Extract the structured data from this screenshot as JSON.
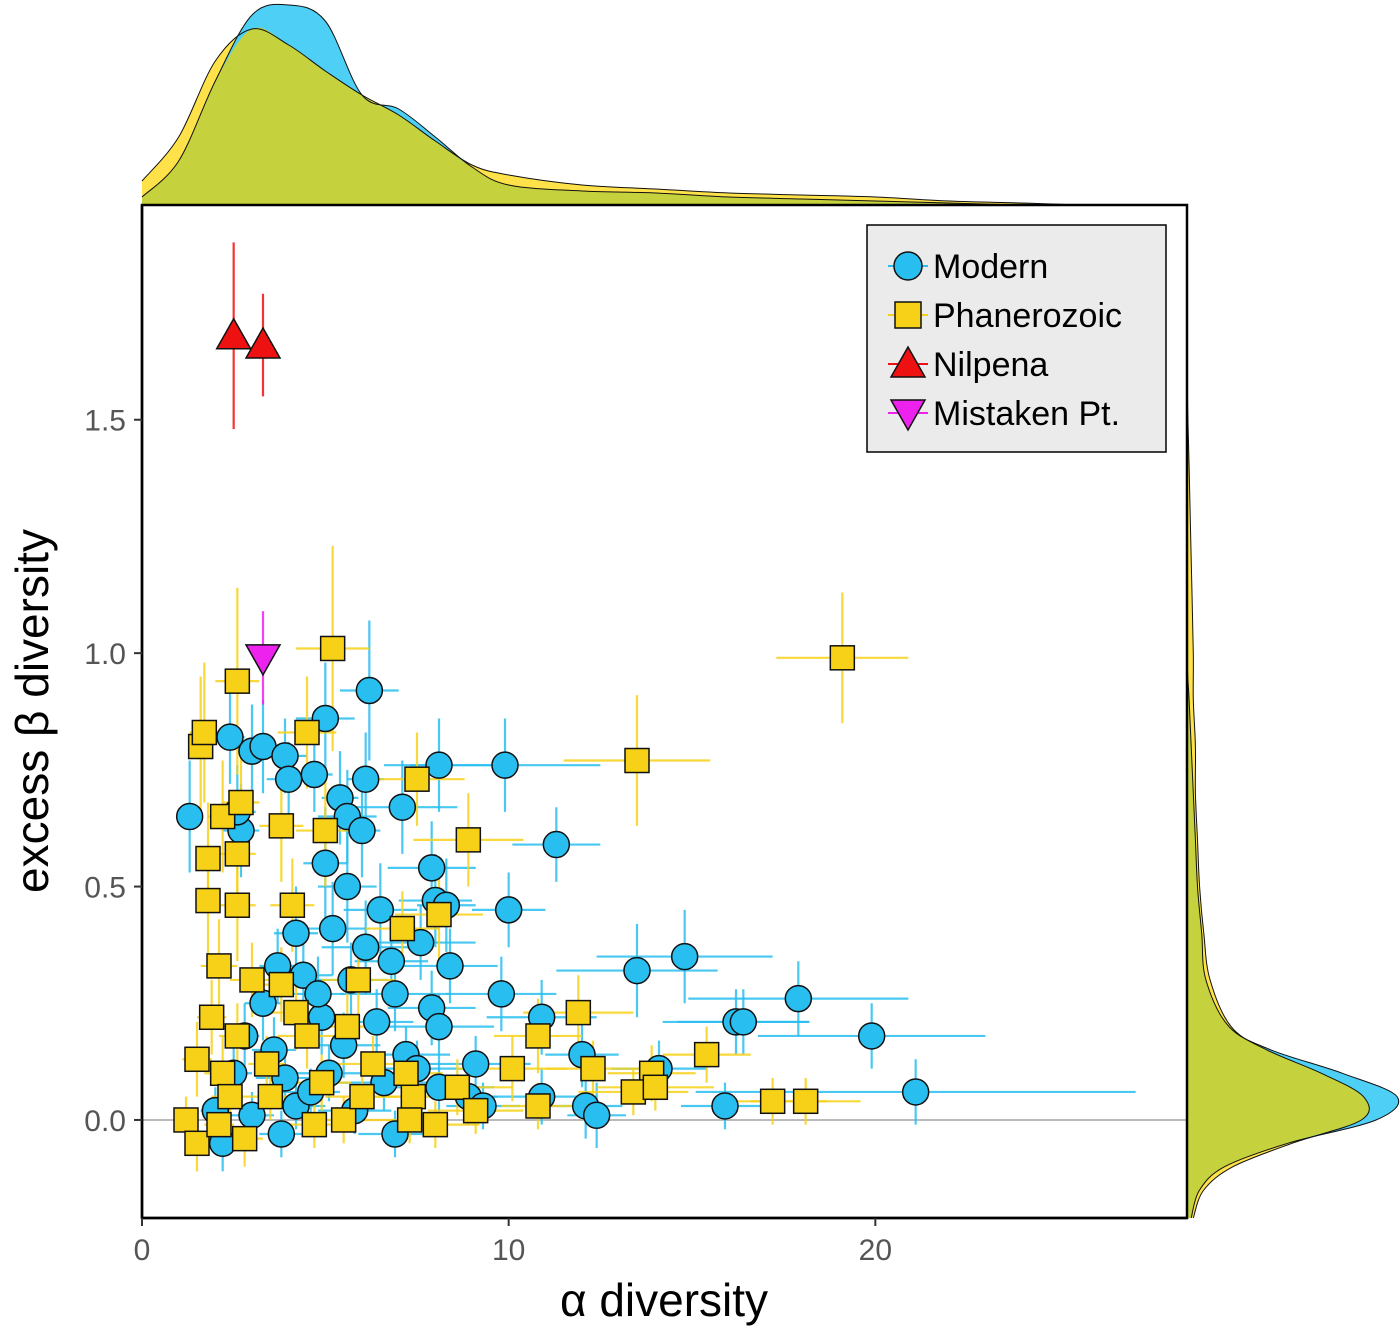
{
  "chart_data": {
    "type": "scatter",
    "xlabel": "α diversity",
    "ylabel": "excess β diversity",
    "xlim": [
      0,
      28.5
    ],
    "ylim": [
      -0.21,
      1.96
    ],
    "x_ticks": [
      {
        "value": 0,
        "label": "0"
      },
      {
        "value": 10,
        "label": "10"
      },
      {
        "value": 20,
        "label": "20"
      }
    ],
    "y_ticks": [
      {
        "value": 0.0,
        "label": "0.0"
      },
      {
        "value": 0.5,
        "label": "0.5"
      },
      {
        "value": 1.0,
        "label": "1.0"
      },
      {
        "value": 1.5,
        "label": "1.5"
      }
    ],
    "reference_line_y": 0,
    "legend_position": "top-right",
    "colors": {
      "modern": "#29BEF0",
      "phanerozoic": "#F7D117",
      "nilpena": "#EE1111",
      "mistaken": "#EE22EE",
      "density_modern": "#4DCFF6",
      "density_phanerozoic": "#FFE24A",
      "density_overlap": "#C5D23D",
      "refline": "#BBBBBB"
    },
    "marginal_x_density": {
      "x": [
        0,
        1,
        2,
        3,
        4,
        5,
        6,
        7,
        8,
        9,
        10,
        12,
        14,
        16,
        18,
        20,
        22,
        24,
        26,
        28.5
      ],
      "modern": [
        0.04,
        0.22,
        0.62,
        0.95,
        1.0,
        0.92,
        0.55,
        0.48,
        0.34,
        0.19,
        0.1,
        0.07,
        0.06,
        0.04,
        0.03,
        0.02,
        0.01,
        0.0,
        0.0,
        0.0
      ],
      "phanerozoic": [
        0.12,
        0.34,
        0.72,
        0.88,
        0.8,
        0.67,
        0.55,
        0.45,
        0.32,
        0.2,
        0.15,
        0.1,
        0.08,
        0.06,
        0.05,
        0.04,
        0.02,
        0.01,
        0.0,
        0.0
      ]
    },
    "marginal_y_density": {
      "y": [
        -0.21,
        -0.15,
        -0.1,
        -0.05,
        0.0,
        0.05,
        0.1,
        0.15,
        0.2,
        0.3,
        0.4,
        0.5,
        0.6,
        0.7,
        0.8,
        0.9,
        1.0,
        1.2,
        1.4,
        1.6,
        1.8,
        1.96
      ],
      "modern": [
        0.02,
        0.06,
        0.18,
        0.48,
        0.9,
        1.0,
        0.74,
        0.4,
        0.2,
        0.09,
        0.07,
        0.05,
        0.04,
        0.03,
        0.02,
        0.01,
        0.0,
        0.0,
        0.0,
        0.0,
        0.0,
        0.0
      ],
      "phanerozoic": [
        0.03,
        0.08,
        0.22,
        0.5,
        0.83,
        0.84,
        0.64,
        0.38,
        0.21,
        0.11,
        0.08,
        0.06,
        0.05,
        0.04,
        0.04,
        0.03,
        0.03,
        0.02,
        0.01,
        0.0,
        0.0,
        0.0
      ]
    },
    "series": [
      {
        "name": "Modern",
        "marker": "circle",
        "points": [
          [
            1.3,
            0.65,
            0.1,
            0.12
          ],
          [
            2.4,
            0.82,
            0.4,
            0.1
          ],
          [
            2.7,
            0.62,
            0.5,
            0.1
          ],
          [
            3.0,
            0.79,
            0.4,
            0.1
          ],
          [
            3.3,
            0.8,
            0.5,
            0.1
          ],
          [
            3.9,
            0.78,
            0.6,
            0.08
          ],
          [
            4.0,
            0.73,
            0.6,
            0.08
          ],
          [
            4.7,
            0.74,
            0.5,
            0.08
          ],
          [
            5.0,
            0.86,
            0.8,
            0.12
          ],
          [
            5.4,
            0.69,
            0.5,
            0.1
          ],
          [
            5.6,
            0.65,
            0.8,
            0.1
          ],
          [
            6.1,
            0.73,
            0.5,
            0.1
          ],
          [
            6.0,
            0.62,
            0.5,
            0.1
          ],
          [
            6.2,
            0.92,
            0.8,
            0.15
          ],
          [
            7.1,
            0.67,
            1.5,
            0.1
          ],
          [
            8.1,
            0.76,
            1.5,
            0.1
          ],
          [
            9.9,
            0.76,
            2.6,
            0.1
          ],
          [
            11.3,
            0.59,
            1.2,
            0.08
          ],
          [
            10.0,
            0.45,
            1.0,
            0.08
          ],
          [
            13.5,
            0.32,
            2.2,
            0.1
          ],
          [
            14.8,
            0.35,
            2.4,
            0.1
          ],
          [
            9.8,
            0.27,
            1.5,
            0.08
          ],
          [
            10.9,
            0.22,
            1.5,
            0.08
          ],
          [
            16.2,
            0.21,
            2.0,
            0.07
          ],
          [
            16.4,
            0.21,
            1.8,
            0.07
          ],
          [
            17.9,
            0.26,
            3.0,
            0.08
          ],
          [
            19.9,
            0.18,
            3.1,
            0.07
          ],
          [
            21.1,
            0.06,
            6.0,
            0.07
          ],
          [
            15.9,
            0.03,
            1.2,
            0.05
          ],
          [
            12.1,
            0.03,
            1.0,
            0.07
          ],
          [
            12.4,
            0.01,
            0.8,
            0.07
          ],
          [
            12.0,
            0.14,
            1.0,
            0.07
          ],
          [
            10.9,
            0.05,
            1.5,
            0.06
          ],
          [
            14.1,
            0.11,
            1.3,
            0.06
          ],
          [
            8.9,
            0.05,
            0.8,
            0.06
          ],
          [
            9.3,
            0.03,
            1.0,
            0.05
          ],
          [
            5.0,
            0.55,
            0.6,
            0.12
          ],
          [
            5.6,
            0.5,
            0.8,
            0.12
          ],
          [
            7.9,
            0.54,
            1.2,
            0.1
          ],
          [
            8.0,
            0.47,
            1.0,
            0.1
          ],
          [
            8.3,
            0.46,
            0.8,
            0.1
          ],
          [
            4.2,
            0.4,
            0.6,
            0.1
          ],
          [
            5.2,
            0.41,
            1.0,
            0.1
          ],
          [
            6.1,
            0.37,
            1.2,
            0.1
          ],
          [
            7.6,
            0.38,
            1.5,
            0.08
          ],
          [
            8.4,
            0.33,
            1.3,
            0.08
          ],
          [
            3.7,
            0.33,
            0.5,
            0.08
          ],
          [
            4.4,
            0.31,
            0.8,
            0.08
          ],
          [
            5.7,
            0.3,
            1.0,
            0.08
          ],
          [
            6.9,
            0.27,
            1.5,
            0.08
          ],
          [
            7.9,
            0.24,
            1.2,
            0.08
          ],
          [
            3.3,
            0.25,
            0.5,
            0.08
          ],
          [
            4.9,
            0.22,
            0.8,
            0.08
          ],
          [
            6.4,
            0.21,
            1.0,
            0.07
          ],
          [
            8.1,
            0.2,
            1.5,
            0.07
          ],
          [
            9.1,
            0.12,
            1.5,
            0.06
          ],
          [
            2.8,
            0.18,
            0.4,
            0.07
          ],
          [
            3.6,
            0.15,
            0.6,
            0.07
          ],
          [
            5.5,
            0.16,
            1.0,
            0.07
          ],
          [
            7.2,
            0.14,
            1.2,
            0.06
          ],
          [
            2.5,
            0.1,
            0.5,
            0.06
          ],
          [
            3.9,
            0.09,
            0.8,
            0.06
          ],
          [
            5.1,
            0.1,
            1.0,
            0.06
          ],
          [
            6.6,
            0.08,
            1.2,
            0.06
          ],
          [
            8.1,
            0.07,
            1.5,
            0.06
          ],
          [
            2.0,
            0.02,
            0.4,
            0.05
          ],
          [
            3.0,
            0.01,
            0.6,
            0.05
          ],
          [
            4.2,
            0.03,
            0.8,
            0.05
          ],
          [
            5.8,
            0.02,
            1.0,
            0.05
          ],
          [
            6.9,
            -0.03,
            1.0,
            0.05
          ],
          [
            2.2,
            -0.05,
            0.5,
            0.06
          ],
          [
            3.8,
            -0.03,
            0.6,
            0.05
          ],
          [
            4.6,
            0.06,
            0.8,
            0.05
          ],
          [
            7.5,
            0.11,
            1.3,
            0.06
          ],
          [
            2.6,
            0.66,
            0.5,
            0.1
          ],
          [
            6.5,
            0.45,
            1.0,
            0.1
          ],
          [
            4.8,
            0.27,
            0.7,
            0.08
          ],
          [
            6.8,
            0.34,
            1.0,
            0.08
          ]
        ]
      },
      {
        "name": "Phanerozoic",
        "marker": "square",
        "points": [
          [
            1.6,
            0.8,
            0.3,
            0.15
          ],
          [
            1.7,
            0.83,
            0.4,
            0.15
          ],
          [
            1.8,
            0.56,
            0.3,
            0.12
          ],
          [
            1.8,
            0.47,
            0.3,
            0.12
          ],
          [
            2.2,
            0.65,
            0.4,
            0.12
          ],
          [
            2.6,
            0.57,
            0.5,
            0.12
          ],
          [
            2.7,
            0.68,
            0.5,
            0.12
          ],
          [
            2.6,
            0.94,
            0.6,
            0.2
          ],
          [
            2.6,
            0.46,
            0.5,
            0.12
          ],
          [
            3.8,
            0.63,
            0.6,
            0.12
          ],
          [
            5.2,
            1.01,
            1.0,
            0.22
          ],
          [
            4.5,
            0.83,
            0.8,
            0.12
          ],
          [
            7.5,
            0.73,
            1.3,
            0.1
          ],
          [
            8.9,
            0.6,
            1.5,
            0.1
          ],
          [
            13.5,
            0.77,
            2.0,
            0.14
          ],
          [
            19.1,
            0.99,
            1.8,
            0.14
          ],
          [
            5.0,
            0.62,
            0.8,
            0.12
          ],
          [
            4.1,
            0.46,
            0.6,
            0.1
          ],
          [
            7.1,
            0.41,
            1.0,
            0.08
          ],
          [
            8.1,
            0.44,
            1.2,
            0.1
          ],
          [
            2.1,
            0.33,
            0.5,
            0.1
          ],
          [
            1.9,
            0.22,
            0.4,
            0.08
          ],
          [
            1.5,
            0.13,
            0.4,
            0.08
          ],
          [
            2.2,
            0.1,
            0.5,
            0.08
          ],
          [
            3.0,
            0.3,
            0.6,
            0.08
          ],
          [
            4.2,
            0.23,
            0.8,
            0.08
          ],
          [
            5.9,
            0.3,
            1.0,
            0.08
          ],
          [
            3.4,
            0.12,
            0.5,
            0.06
          ],
          [
            4.9,
            0.08,
            0.8,
            0.06
          ],
          [
            6.3,
            0.12,
            1.0,
            0.06
          ],
          [
            7.4,
            0.05,
            1.2,
            0.06
          ],
          [
            8.6,
            0.07,
            1.5,
            0.06
          ],
          [
            9.1,
            0.02,
            1.3,
            0.05
          ],
          [
            10.1,
            0.11,
            1.5,
            0.07
          ],
          [
            10.8,
            0.18,
            1.2,
            0.08
          ],
          [
            11.9,
            0.23,
            1.5,
            0.08
          ],
          [
            12.3,
            0.11,
            1.3,
            0.06
          ],
          [
            10.8,
            0.03,
            1.0,
            0.05
          ],
          [
            13.9,
            0.1,
            1.2,
            0.06
          ],
          [
            13.4,
            0.06,
            1.5,
            0.05
          ],
          [
            14.0,
            0.07,
            1.6,
            0.05
          ],
          [
            15.4,
            0.14,
            1.2,
            0.06
          ],
          [
            17.2,
            0.04,
            1.5,
            0.05
          ],
          [
            18.1,
            0.04,
            1.5,
            0.05
          ],
          [
            1.2,
            0.0,
            0.3,
            0.05
          ],
          [
            1.5,
            -0.05,
            0.3,
            0.06
          ],
          [
            2.1,
            -0.01,
            0.4,
            0.05
          ],
          [
            2.8,
            -0.04,
            0.5,
            0.06
          ],
          [
            3.5,
            0.05,
            0.6,
            0.05
          ],
          [
            4.7,
            -0.01,
            0.8,
            0.05
          ],
          [
            5.5,
            0.0,
            0.8,
            0.05
          ],
          [
            7.3,
            0.0,
            1.0,
            0.05
          ],
          [
            8.0,
            -0.01,
            1.2,
            0.05
          ],
          [
            6.0,
            0.05,
            1.0,
            0.05
          ],
          [
            4.5,
            0.18,
            0.8,
            0.07
          ],
          [
            5.6,
            0.2,
            0.9,
            0.07
          ],
          [
            2.6,
            0.18,
            0.5,
            0.07
          ],
          [
            7.2,
            0.1,
            1.0,
            0.06
          ],
          [
            2.4,
            0.05,
            0.5,
            0.05
          ],
          [
            3.8,
            0.29,
            0.7,
            0.08
          ]
        ]
      },
      {
        "name": "Nilpena",
        "marker": "triangle-up",
        "points": [
          [
            2.5,
            1.68,
            0.0,
            0.2
          ],
          [
            3.3,
            1.66,
            0.0,
            0.11
          ]
        ]
      },
      {
        "name": "Mistaken Pt.",
        "marker": "triangle-down",
        "points": [
          [
            3.3,
            0.99,
            0.0,
            0.1
          ]
        ]
      }
    ]
  },
  "legend": {
    "items": [
      {
        "label": "Modern"
      },
      {
        "label": "Phanerozoic"
      },
      {
        "label": "Nilpena"
      },
      {
        "label": "Mistaken Pt."
      }
    ]
  }
}
